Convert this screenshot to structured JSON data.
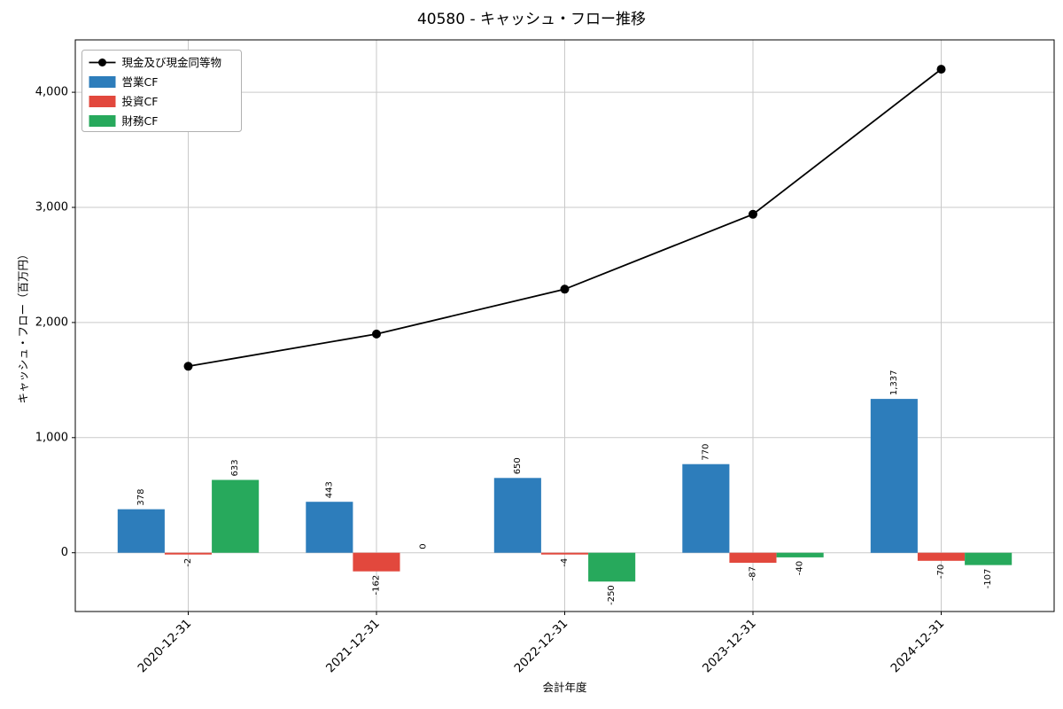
{
  "window": {
    "title": "40580 - キャッシュ・フロー推移"
  },
  "chart_data": {
    "type": "bar+line",
    "title": "40580 - キャッシュ・フロー推移",
    "xlabel": "会計年度",
    "ylabel": "キャッシュ・フロー（百万円）",
    "categories": [
      "2020-12-31",
      "2021-12-31",
      "2022-12-31",
      "2023-12-31",
      "2024-12-31"
    ],
    "bar_series": [
      {
        "name": "営業CF",
        "color": "#2d7dbb",
        "values": [
          378,
          443,
          650,
          770,
          1337
        ]
      },
      {
        "name": "投資CF",
        "color": "#e2483d",
        "values": [
          -2,
          -162,
          -4,
          -87,
          -70
        ]
      },
      {
        "name": "財務CF",
        "color": "#27a95c",
        "values": [
          633,
          0,
          -250,
          -40,
          -107
        ]
      }
    ],
    "line_series": {
      "name": "現金及び現金同等物",
      "color": "#000000",
      "marker": "circle",
      "values": [
        1620,
        1900,
        2290,
        2940,
        4200
      ]
    },
    "bar_value_labels": [
      [
        "378",
        "443",
        "650",
        "770",
        "1,337"
      ],
      [
        "-2",
        "-162",
        "-4",
        "-87",
        "-70"
      ],
      [
        "633",
        "0",
        "-250",
        "-40",
        "-107"
      ]
    ],
    "yticks": [
      0,
      1000,
      2000,
      3000,
      4000
    ],
    "ytick_labels": [
      "0",
      "1,000",
      "2,000",
      "3,000",
      "4,000"
    ],
    "ylim": [
      -510,
      4455
    ],
    "grid": true,
    "legend_position": "upper left",
    "legend_entries": [
      "現金及び現金同等物",
      "営業CF",
      "投資CF",
      "財務CF"
    ]
  }
}
